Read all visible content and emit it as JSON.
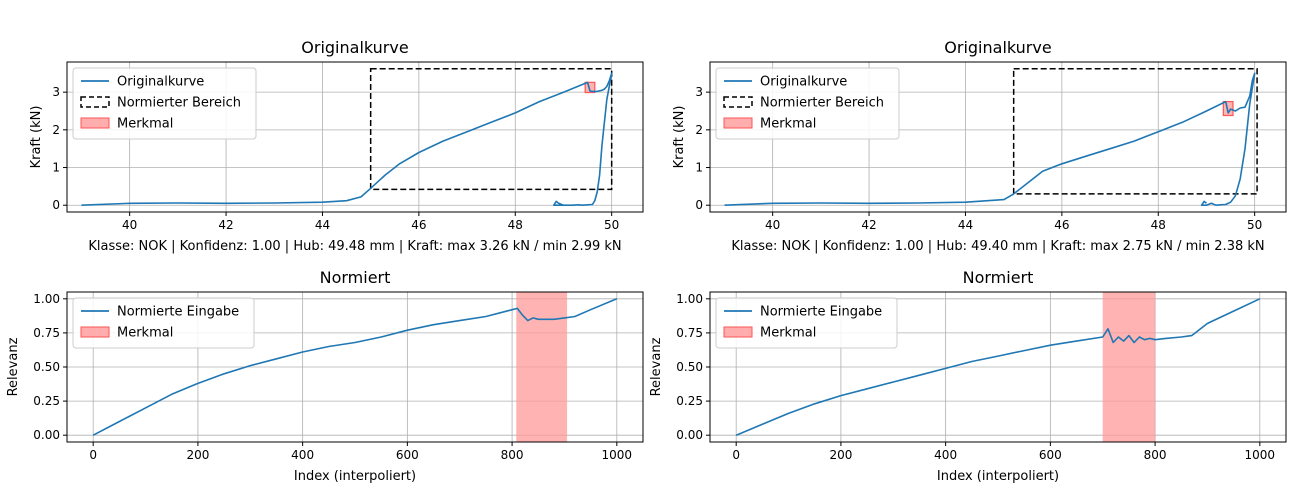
{
  "colors": {
    "curve": "#1f77b4",
    "feature_fill": "#ff9999",
    "feature_edge": "#ff5555",
    "grid": "#b0b0b0",
    "box": "#000000"
  },
  "chart_data": [
    {
      "type": "line",
      "title": "Originalkurve",
      "xlabel": "Klasse: NOK | Konfidenz: 1.00 | Hub: 49.48 mm | Kraft: max 3.26 kN / min 2.99 kN",
      "ylabel": "Kraft (kN)",
      "xlim": [
        38.7,
        50.65
      ],
      "ylim": [
        -0.18,
        3.8
      ],
      "xticks": [
        "40",
        "42",
        "44",
        "46",
        "48",
        "50"
      ],
      "yticks": [
        "0",
        "1",
        "2",
        "3"
      ],
      "legend": {
        "position": "top-left",
        "entries": [
          "Originalkurve",
          "Normierter Bereich",
          "Merkmal"
        ]
      },
      "grid": true,
      "series": [
        {
          "name": "Originalkurve",
          "x": [
            39.0,
            40.0,
            41.0,
            42.0,
            43.0,
            44.0,
            44.5,
            44.8,
            45.0,
            45.3,
            45.6,
            46.0,
            46.5,
            47.0,
            47.5,
            48.0,
            48.5,
            49.0,
            49.5,
            49.55,
            49.6,
            49.7,
            49.8,
            49.85,
            49.9,
            49.95,
            50.0,
            49.9,
            49.8,
            49.75,
            49.7,
            49.65,
            49.6,
            49.5,
            49.4,
            49.3,
            49.2,
            49.0,
            48.8,
            48.85,
            48.9,
            49.0
          ],
          "y": [
            0.0,
            0.05,
            0.06,
            0.05,
            0.06,
            0.08,
            0.12,
            0.22,
            0.45,
            0.8,
            1.1,
            1.4,
            1.7,
            1.95,
            2.2,
            2.45,
            2.75,
            3.0,
            3.26,
            3.03,
            3.02,
            3.02,
            3.05,
            3.08,
            3.15,
            3.3,
            3.5,
            2.8,
            1.6,
            0.8,
            0.35,
            0.12,
            0.02,
            0.01,
            0.0,
            0.01,
            0.0,
            0.0,
            0.0,
            0.1,
            0.05,
            0.0
          ]
        }
      ],
      "normalized_region": {
        "x": [
          45.0,
          50.0
        ],
        "y": [
          0.42,
          3.62
        ]
      },
      "feature_region": {
        "x": [
          49.45,
          49.65
        ],
        "y": [
          2.99,
          3.26
        ]
      }
    },
    {
      "type": "line",
      "title": "Originalkurve",
      "xlabel": "Klasse: NOK | Konfidenz: 1.00 | Hub: 49.40 mm | Kraft: max 2.75 kN / min 2.38 kN",
      "ylabel": "Kraft (kN)",
      "xlim": [
        38.7,
        50.65
      ],
      "ylim": [
        -0.18,
        3.8
      ],
      "xticks": [
        "40",
        "42",
        "44",
        "46",
        "48",
        "50"
      ],
      "yticks": [
        "0",
        "1",
        "2",
        "3"
      ],
      "legend": {
        "position": "top-left",
        "entries": [
          "Originalkurve",
          "Normierter Bereich",
          "Merkmal"
        ]
      },
      "grid": true,
      "series": [
        {
          "name": "Originalkurve",
          "x": [
            39.0,
            40.0,
            41.0,
            42.0,
            43.0,
            44.0,
            44.8,
            45.0,
            45.3,
            45.6,
            46.0,
            46.5,
            47.0,
            47.5,
            48.0,
            48.5,
            49.0,
            49.4,
            49.45,
            49.5,
            49.6,
            49.7,
            49.8,
            49.9,
            49.95,
            50.0,
            49.9,
            49.8,
            49.7,
            49.6,
            49.5,
            49.4,
            49.3,
            49.2,
            49.1,
            49.0,
            48.9,
            48.95,
            49.0
          ],
          "y": [
            0.0,
            0.05,
            0.06,
            0.05,
            0.06,
            0.08,
            0.15,
            0.3,
            0.6,
            0.9,
            1.1,
            1.3,
            1.5,
            1.7,
            1.95,
            2.2,
            2.5,
            2.75,
            2.45,
            2.55,
            2.5,
            2.58,
            2.6,
            2.9,
            3.3,
            3.5,
            2.7,
            1.5,
            0.7,
            0.25,
            0.08,
            0.02,
            0.01,
            0.0,
            0.05,
            0.0,
            0.0,
            0.1,
            0.05
          ]
        }
      ],
      "normalized_region": {
        "x": [
          45.0,
          50.05
        ],
        "y": [
          0.3,
          3.62
        ]
      },
      "feature_region": {
        "x": [
          49.35,
          49.55
        ],
        "y": [
          2.38,
          2.75
        ]
      }
    },
    {
      "type": "line",
      "title": "Normiert",
      "xlabel": "Index (interpoliert)",
      "ylabel": "Relevanz",
      "xlim": [
        -50,
        1050
      ],
      "ylim": [
        -0.05,
        1.05
      ],
      "xticks": [
        "0",
        "200",
        "400",
        "600",
        "800",
        "1000"
      ],
      "yticks": [
        "0.00",
        "0.25",
        "0.50",
        "0.75",
        "1.00"
      ],
      "legend": {
        "position": "top-left",
        "entries": [
          "Normierte Eingabe",
          "Merkmal"
        ]
      },
      "grid": true,
      "series": [
        {
          "name": "Normierte Eingabe",
          "x": [
            0,
            50,
            100,
            150,
            200,
            250,
            300,
            350,
            400,
            450,
            500,
            550,
            600,
            650,
            700,
            750,
            800,
            810,
            820,
            830,
            840,
            850,
            860,
            870,
            880,
            900,
            920,
            950,
            1000
          ],
          "y": [
            0.0,
            0.1,
            0.2,
            0.3,
            0.38,
            0.45,
            0.51,
            0.56,
            0.61,
            0.65,
            0.68,
            0.72,
            0.77,
            0.81,
            0.84,
            0.87,
            0.92,
            0.93,
            0.88,
            0.84,
            0.86,
            0.85,
            0.85,
            0.85,
            0.85,
            0.86,
            0.87,
            0.92,
            1.0
          ]
        }
      ],
      "feature_region": {
        "x": [
          808,
          905
        ]
      }
    },
    {
      "type": "line",
      "title": "Normiert",
      "xlabel": "Index (interpoliert)",
      "ylabel": "Relevanz",
      "xlim": [
        -50,
        1050
      ],
      "ylim": [
        -0.05,
        1.05
      ],
      "xticks": [
        "0",
        "200",
        "400",
        "600",
        "800",
        "1000"
      ],
      "yticks": [
        "0.00",
        "0.25",
        "0.50",
        "0.75",
        "1.00"
      ],
      "legend": {
        "position": "top-left",
        "entries": [
          "Normierte Eingabe",
          "Merkmal"
        ]
      },
      "grid": true,
      "series": [
        {
          "name": "Normierte Eingabe",
          "x": [
            0,
            50,
            100,
            150,
            200,
            250,
            300,
            350,
            400,
            450,
            500,
            550,
            600,
            650,
            700,
            710,
            720,
            730,
            740,
            750,
            760,
            770,
            780,
            790,
            800,
            820,
            850,
            870,
            900,
            950,
            1000
          ],
          "y": [
            0.0,
            0.08,
            0.16,
            0.23,
            0.29,
            0.34,
            0.39,
            0.44,
            0.49,
            0.54,
            0.58,
            0.62,
            0.66,
            0.69,
            0.72,
            0.78,
            0.68,
            0.72,
            0.69,
            0.73,
            0.68,
            0.72,
            0.7,
            0.71,
            0.7,
            0.71,
            0.72,
            0.73,
            0.82,
            0.91,
            1.0
          ]
        }
      ],
      "feature_region": {
        "x": [
          700,
          800
        ]
      }
    }
  ]
}
